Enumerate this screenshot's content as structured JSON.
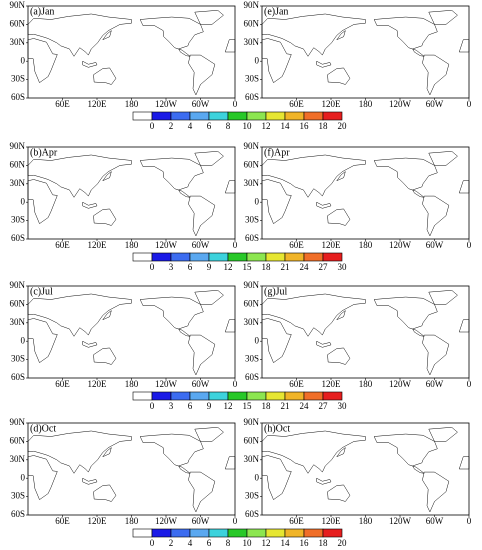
{
  "panels": [
    "(a)Jan",
    "(b)Apr",
    "(c)Jul",
    "(d)Oct",
    "(e)Jan",
    "(f)Apr",
    "(g)Jul",
    "(h)Oct"
  ],
  "lat_labels": [
    "90N",
    "60N",
    "30N",
    "0",
    "30S",
    "60S"
  ],
  "lon_labels": [
    "60E",
    "120E",
    "180",
    "120W",
    "60W",
    "0"
  ],
  "colorbars": [
    {
      "ticks": [
        0,
        2,
        4,
        6,
        8,
        10,
        12,
        14,
        16,
        18,
        20
      ]
    },
    {
      "ticks": [
        0,
        3,
        6,
        9,
        12,
        15,
        18,
        21,
        24,
        27,
        30
      ]
    },
    {
      "ticks": [
        0,
        3,
        6,
        9,
        12,
        15,
        18,
        21,
        24,
        27,
        30
      ]
    },
    {
      "ticks": [
        0,
        2,
        4,
        6,
        8,
        10,
        12,
        14,
        16,
        18,
        20
      ]
    }
  ],
  "colors": [
    "#ffffff",
    "#1a1ae6",
    "#3c6cf0",
    "#5aa8f0",
    "#3cd2dc",
    "#28c828",
    "#8ce650",
    "#e6e632",
    "#f0b428",
    "#f06e28",
    "#e61e1e"
  ]
}
